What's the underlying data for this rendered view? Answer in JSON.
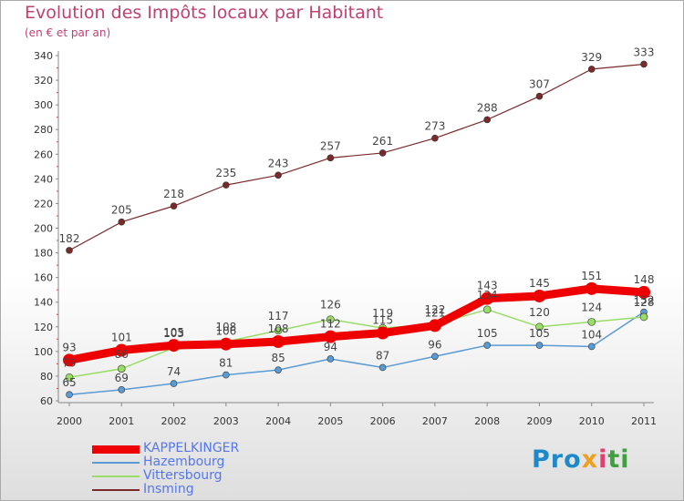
{
  "title": "Evolution des Impôts locaux par Habitant",
  "subtitle": "(en € et par an)",
  "logo": {
    "p1": "Pro",
    "p2": "x",
    "p3": "i",
    "p4": "ti",
    "colors": [
      "#1e88c8",
      "#f0a020",
      "#e04070",
      "#40a040"
    ]
  },
  "chart_data": {
    "type": "line",
    "title": "Evolution des Impôts locaux par Habitant",
    "subtitle": "(en € et par an)",
    "xlabel": "",
    "ylabel": "",
    "ylim": [
      60,
      340
    ],
    "yticks": [
      60,
      80,
      100,
      120,
      140,
      160,
      180,
      200,
      220,
      240,
      260,
      280,
      300,
      320,
      340
    ],
    "grid": false,
    "legend_position": "bottom-left",
    "categories": [
      "2000",
      "2001",
      "2002",
      "2003",
      "2004",
      "2005",
      "2006",
      "2007",
      "2008",
      "2009",
      "2010",
      "2011"
    ],
    "series": [
      {
        "name": "KAPPELKINGER",
        "color": "#ee0000",
        "values": [
          93,
          101,
          105,
          106,
          108,
          112,
          115,
          121,
          143,
          145,
          151,
          148
        ]
      },
      {
        "name": "Hazembourg",
        "color": "#5b9bd5",
        "values": [
          65,
          69,
          74,
          81,
          85,
          94,
          87,
          96,
          105,
          105,
          104,
          132
        ]
      },
      {
        "name": "Vittersbourg",
        "color": "#99dd66",
        "values": [
          79,
          86,
          103,
          108,
          117,
          126,
          119,
          122,
          134,
          120,
          124,
          128
        ]
      },
      {
        "name": "Insming",
        "color": "#7a2a2a",
        "values": [
          182,
          205,
          218,
          235,
          243,
          257,
          261,
          273,
          288,
          307,
          329,
          333
        ]
      }
    ]
  }
}
